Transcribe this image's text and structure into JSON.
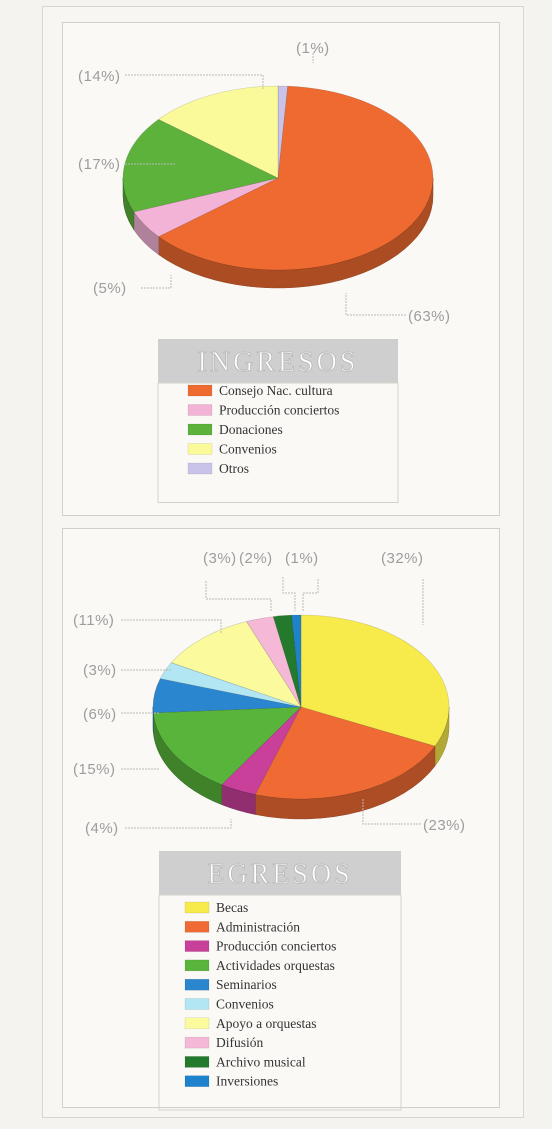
{
  "chart_data": [
    {
      "type": "pie",
      "title": "INGRESOS",
      "slices": [
        {
          "label": "Consejo Nac. cultura",
          "value": 63,
          "value_label": "(63%)",
          "color": "#ef6a30"
        },
        {
          "label": "Producción conciertos",
          "value": 5,
          "value_label": "(5%)",
          "color": "#f3b3d6"
        },
        {
          "label": "Donaciones",
          "value": 17,
          "value_label": "(17%)",
          "color": "#5cb23a"
        },
        {
          "label": "Convenios",
          "value": 14,
          "value_label": "(14%)",
          "color": "#fafa9a"
        },
        {
          "label": "Otros",
          "value": 1,
          "value_label": "(1%)",
          "color": "#c9c3ea"
        }
      ]
    },
    {
      "type": "pie",
      "title": "EGRESOS",
      "slices": [
        {
          "label": "Becas",
          "value": 32,
          "value_label": "(32%)",
          "color": "#f7ea4b"
        },
        {
          "label": "Administración",
          "value": 23,
          "value_label": "(23%)",
          "color": "#f06b34"
        },
        {
          "label": "Producción conciertos",
          "value": 4,
          "value_label": "(4%)",
          "color": "#c8409a"
        },
        {
          "label": "Actividades orquestas",
          "value": 15,
          "value_label": "(15%)",
          "color": "#58b43b"
        },
        {
          "label": "Seminarios",
          "value": 6,
          "value_label": "(6%)",
          "color": "#2a86cf"
        },
        {
          "label": "Convenios",
          "value": 3,
          "value_label": "(3%)",
          "color": "#b3e6f3"
        },
        {
          "label": "Apoyo a orquestas",
          "value": 11,
          "value_label": "(11%)",
          "color": "#fbfb9e"
        },
        {
          "label": "Difusión",
          "value": 3,
          "value_label": "(3%)",
          "color": "#f6b8d7"
        },
        {
          "label": "Archivo musical",
          "value": 2,
          "value_label": "(2%)",
          "color": "#237a2c"
        },
        {
          "label": "Inversiones",
          "value": 1,
          "value_label": "(1%)",
          "color": "#1f82cc"
        }
      ]
    }
  ]
}
